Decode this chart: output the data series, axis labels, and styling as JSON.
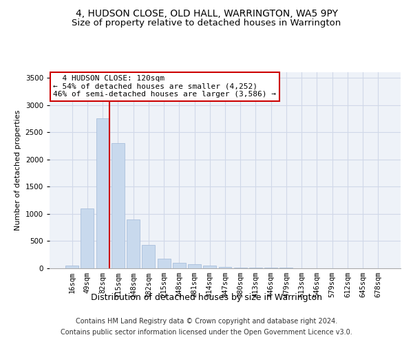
{
  "title": "4, HUDSON CLOSE, OLD HALL, WARRINGTON, WA5 9PY",
  "subtitle": "Size of property relative to detached houses in Warrington",
  "xlabel": "Distribution of detached houses by size in Warrington",
  "ylabel": "Number of detached properties",
  "categories": [
    "16sqm",
    "49sqm",
    "82sqm",
    "115sqm",
    "148sqm",
    "182sqm",
    "215sqm",
    "248sqm",
    "281sqm",
    "314sqm",
    "347sqm",
    "380sqm",
    "413sqm",
    "446sqm",
    "479sqm",
    "513sqm",
    "546sqm",
    "579sqm",
    "612sqm",
    "645sqm",
    "678sqm"
  ],
  "values": [
    55,
    1100,
    2750,
    2300,
    900,
    425,
    175,
    100,
    75,
    50,
    30,
    18,
    15,
    10,
    8,
    5,
    4,
    3,
    2,
    2,
    1
  ],
  "bar_color": "#c8d9ed",
  "bar_edge_color": "#a0b8d8",
  "grid_color": "#d0d8e8",
  "background_color": "#eef2f8",
  "annotation_line1": "  4 HUDSON CLOSE: 120sqm",
  "annotation_line2": "← 54% of detached houses are smaller (4,252)",
  "annotation_line3": "46% of semi-detached houses are larger (3,586) →",
  "annotation_box_color": "#ffffff",
  "annotation_box_edge": "#cc0000",
  "vline_color": "#cc0000",
  "ylim_max": 3600,
  "yticks": [
    0,
    500,
    1000,
    1500,
    2000,
    2500,
    3000,
    3500
  ],
  "footer_line1": "Contains HM Land Registry data © Crown copyright and database right 2024.",
  "footer_line2": "Contains public sector information licensed under the Open Government Licence v3.0.",
  "title_fontsize": 10,
  "subtitle_fontsize": 9.5,
  "xlabel_fontsize": 9,
  "ylabel_fontsize": 8,
  "tick_fontsize": 7.5,
  "footer_fontsize": 7,
  "annotation_fontsize": 8
}
